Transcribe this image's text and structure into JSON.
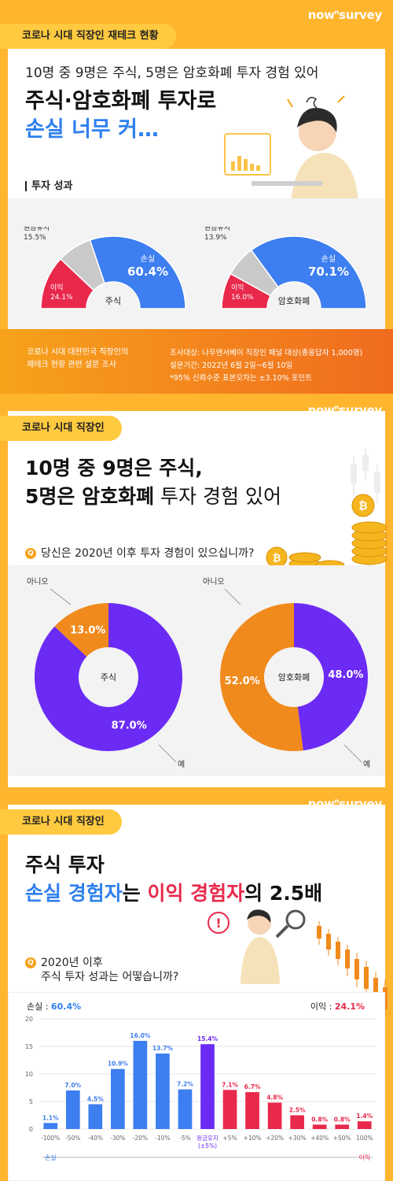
{
  "brand": "nownsurvey",
  "section1": {
    "tag": "코로나 시대 직장인 재테크 현황",
    "subtitle": "10명 중 9명은 주식, 5명은 암호화폐 투자 경험 있어",
    "title_line1": "주식·암호화폐 투자로",
    "title_line2": "손실 너무 커",
    "title_line2_suffix": "…",
    "label": "투자 성과",
    "donut_stock": {
      "name": "주식",
      "loss_label": "손실",
      "loss": "60.4%",
      "keep_label": "원금유지",
      "keep": "15.5%",
      "gain_label": "이익",
      "gain": "24.1%"
    },
    "donut_crypto": {
      "name": "암호화폐",
      "loss_label": "손실",
      "loss": "70.1%",
      "keep_label": "원금유지",
      "keep": "13.9%",
      "gain_label": "이익",
      "gain": "16.0%"
    }
  },
  "info": {
    "left": "코로나 시대 대한민국 직장인의\n재테크 현황 관련 설문 조사",
    "right1": "조사대상: 나우앤서베이 직장인 패널 대상(총응답자 1,000명)",
    "right2": "설문기간: 2022년 6월 2일~6월 10일",
    "right3": "*95% 신뢰수준 표본오차는 ±3.10% 포인트"
  },
  "section2": {
    "tag": "코로나 시대 직장인",
    "title_line1": "10명 중 9명은 주식,",
    "title_line2_bold": "5명은 암호화폐",
    "title_line2_rest": " 투자 경험 있어",
    "question": "당신은 2020년 이후 투자 경험이 있으십니까?",
    "donut_stock": {
      "name": "주식",
      "no_label": "아니오",
      "no": "13.0%",
      "yes_label": "예",
      "yes": "87.0%"
    },
    "donut_crypto": {
      "name": "암호화폐",
      "no_label": "아니오",
      "no": "52.0%",
      "yes_label": "예",
      "yes": "48.0%"
    }
  },
  "section3": {
    "tag": "코로나 시대 직장인",
    "title_line1": "주식 투자",
    "title_blue": "손실 경험자",
    "title_mid": "는 ",
    "title_red": "이익 경험자",
    "title_end": "의 2.5배",
    "question_line1": "2020년 이후",
    "question_line2": "주식 투자 성과는 어떻습니까?",
    "loss_summary_label": "손실 : ",
    "loss_summary": "60.4%",
    "gain_summary_label": "이익 : ",
    "gain_summary": "24.1%",
    "axis_loss": "손실",
    "axis_gain": "이익"
  },
  "colors": {
    "blue": "#3D7EF0",
    "gray": "#C9C9C9",
    "red": "#E8294B",
    "purple": "#6C2BF5",
    "orange": "#F08A1C",
    "yellow": "#FFC940"
  },
  "chart_data": {
    "type": "bar",
    "categories": [
      "-100%",
      "-50%",
      "-40%",
      "-30%",
      "-20%",
      "-10%",
      "-5%",
      "원금유지\n(±5%)",
      "+5%",
      "+10%",
      "+20%",
      "+30%",
      "+40%",
      "+50%",
      "100%"
    ],
    "values": [
      1.1,
      7.0,
      4.5,
      10.9,
      16.0,
      13.7,
      7.2,
      15.4,
      7.1,
      6.7,
      4.8,
      2.5,
      0.8,
      0.8,
      1.4
    ],
    "value_labels": [
      "1.1%",
      "7.0%",
      "4.5%",
      "10.9%",
      "16.0%",
      "13.7%",
      "7.2%",
      "15.4%",
      "7.1%",
      "6.7%",
      "4.8%",
      "2.5%",
      "0.8%",
      "0.8%",
      "1.4%"
    ],
    "bar_colors": [
      "#3D7EF0",
      "#3D7EF0",
      "#3D7EF0",
      "#3D7EF0",
      "#3D7EF0",
      "#3D7EF0",
      "#3D7EF0",
      "#6C2BF5",
      "#E8294B",
      "#E8294B",
      "#E8294B",
      "#E8294B",
      "#E8294B",
      "#E8294B",
      "#E8294B"
    ],
    "yticks": [
      "0",
      "5",
      "10",
      "15",
      "20"
    ],
    "ylim": [
      0,
      20
    ],
    "grid": true
  }
}
